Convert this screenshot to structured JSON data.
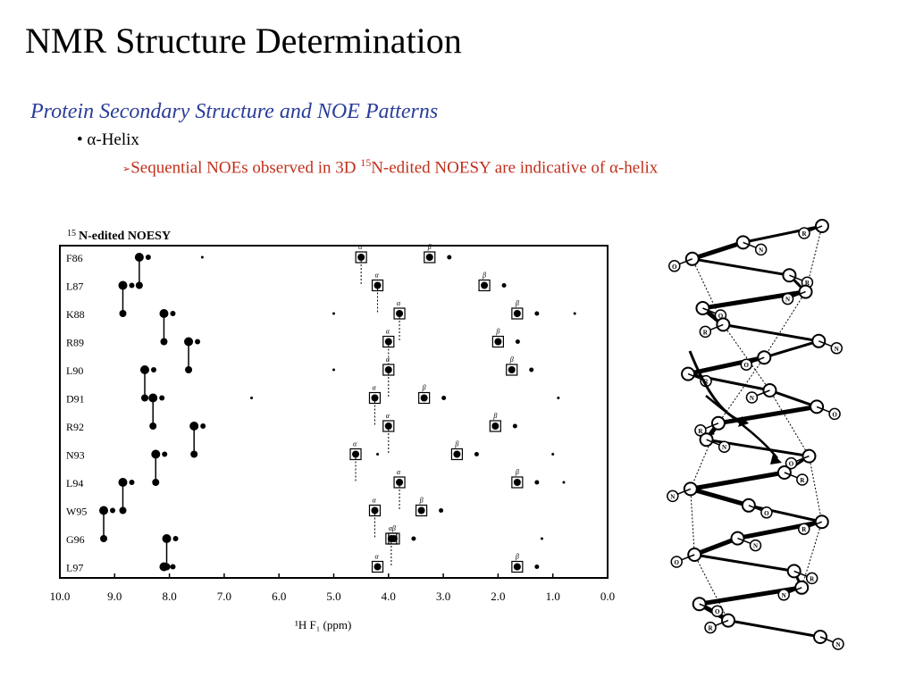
{
  "slide": {
    "title": "NMR Structure Determination",
    "subtitle": "Protein Secondary Structure and NOE Patterns",
    "bullet1": {
      "marker": "•",
      "symbol": "α",
      "text": "-Helix"
    },
    "bullet2": {
      "marker": "➢",
      "text_before": "Sequential NOEs observed in 3D ",
      "superscript": "15",
      "text_after": "N-edited NOESY are indicative of ",
      "symbol": "α",
      "text_end": "-helix"
    }
  },
  "noesy_figure": {
    "title_sup": "15",
    "title": "N-edited NOESY",
    "residues": [
      "F86",
      "L87",
      "K88",
      "R89",
      "L90",
      "D91",
      "R92",
      "N93",
      "L94",
      "W95",
      "G96",
      "L97"
    ],
    "x_ticks": [
      "10.0",
      "9.0",
      "8.0",
      "7.0",
      "6.0",
      "5.0",
      "4.0",
      "3.0",
      "2.0",
      "1.0",
      "0.0"
    ],
    "x_label": "¹H F₁ (ppm)",
    "alpha_label": "α",
    "beta_label": "β"
  },
  "helix_figure": {
    "side_chain_label": "R",
    "nitrogen_label": "N",
    "oxygen_label": "O"
  }
}
